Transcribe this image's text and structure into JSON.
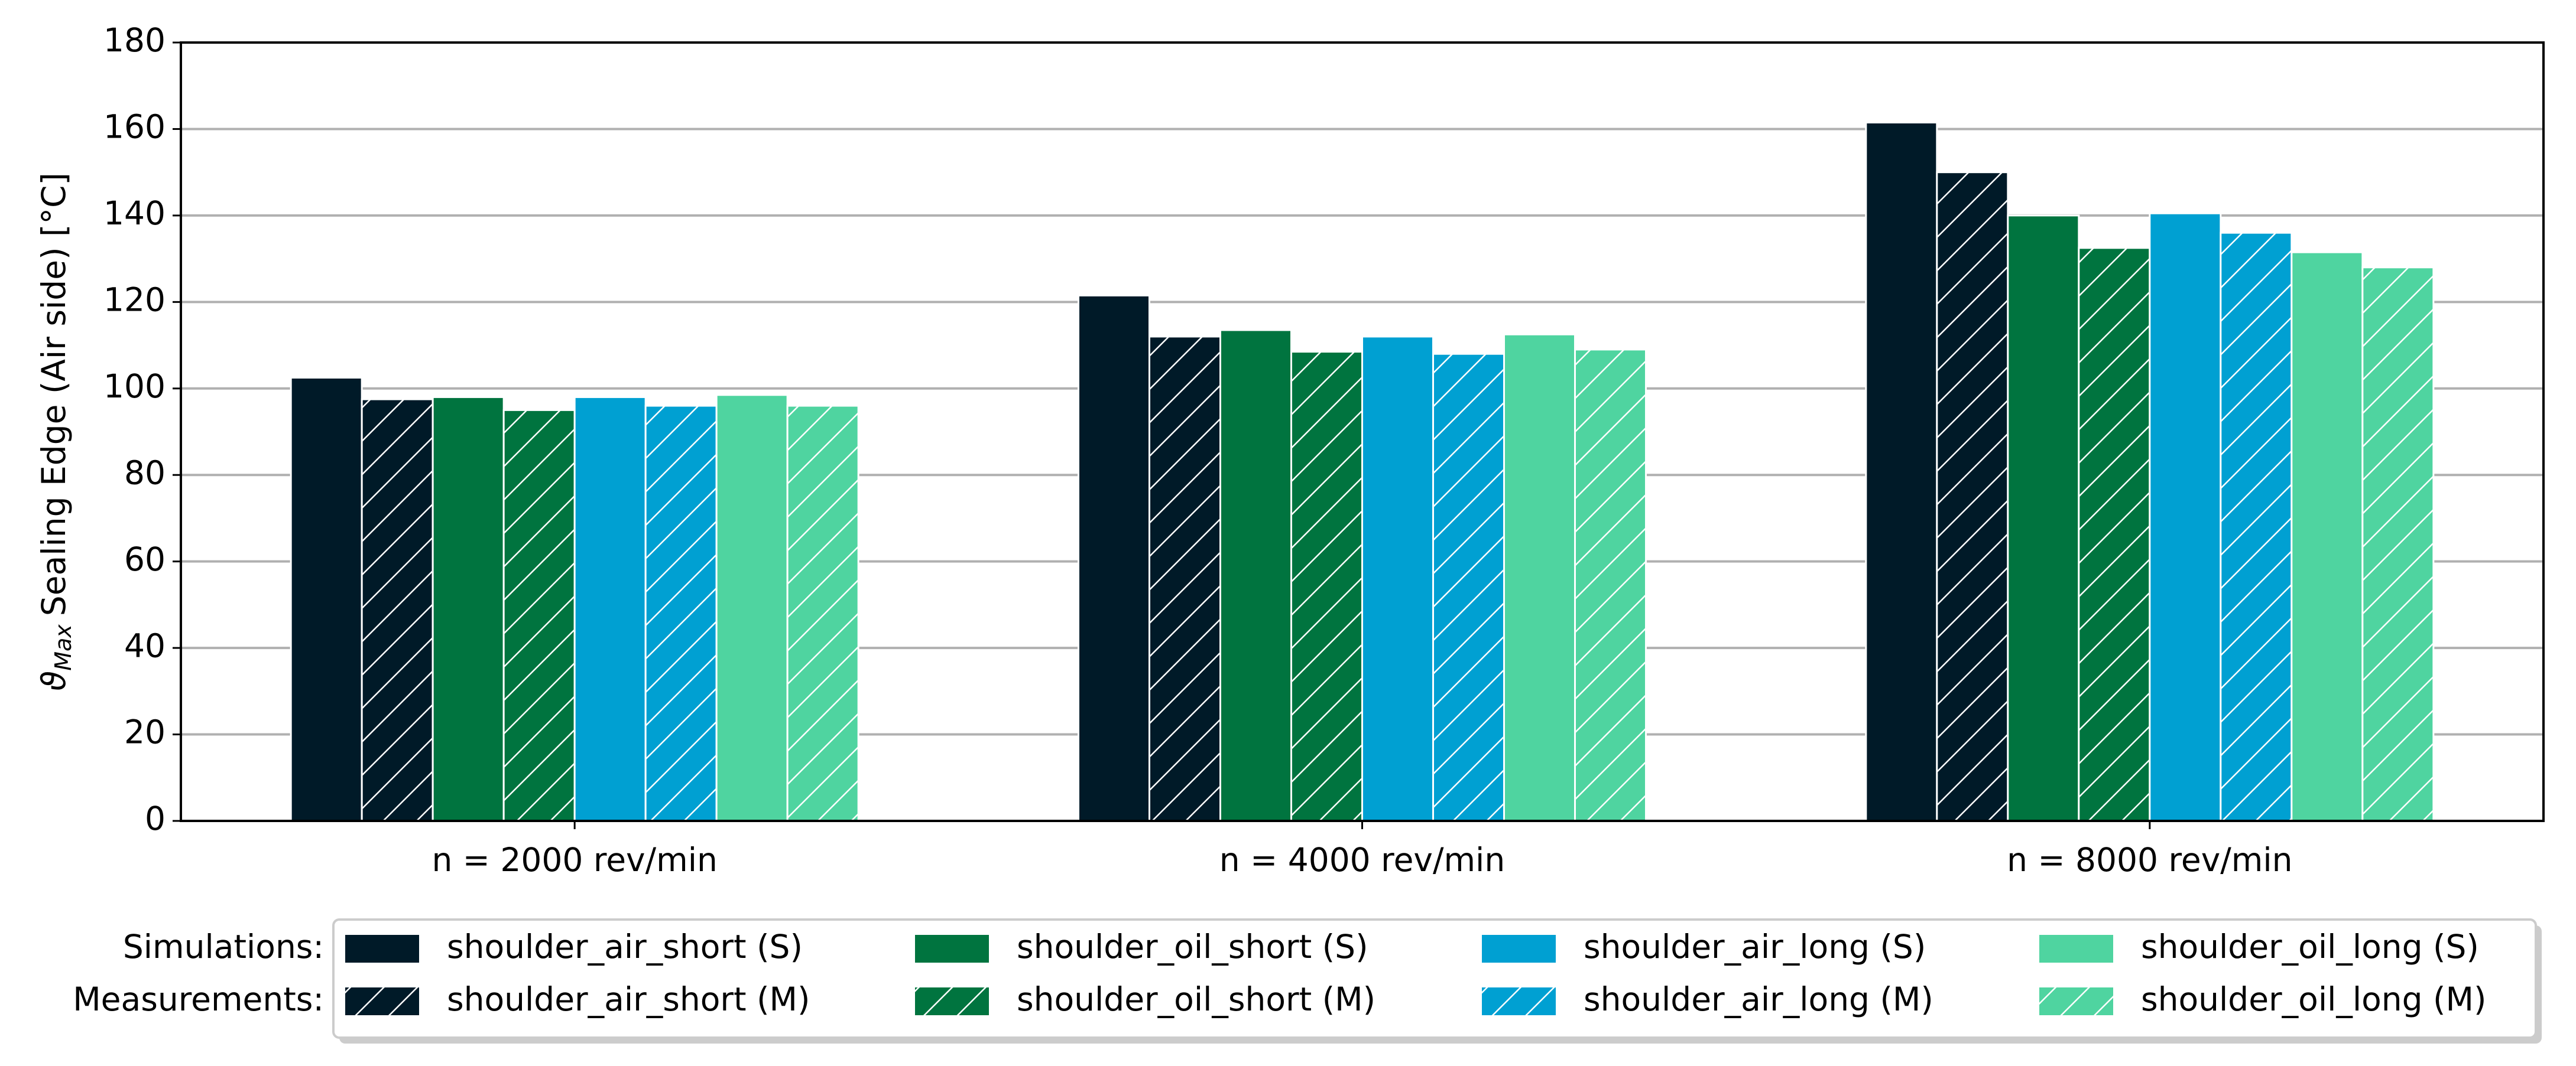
{
  "chart_data": {
    "type": "bar",
    "ylabel": {
      "symbol": "ϑ",
      "subscript": "Max",
      "text": "Sealing Edge (Air side)  [°C]"
    },
    "categories": [
      "n = 2000 rev/min",
      "n = 4000 rev/min",
      "n = 8000 rev/min"
    ],
    "series": [
      {
        "name": "shoulder_air_short (S)",
        "color": "#001a28",
        "hatch": false,
        "values": [
          102.5,
          121.5,
          161.5
        ]
      },
      {
        "name": "shoulder_air_short (M)",
        "color": "#001a28",
        "hatch": true,
        "values": [
          97.5,
          112,
          150
        ]
      },
      {
        "name": "shoulder_oil_short (S)",
        "color": "#00743f",
        "hatch": false,
        "values": [
          98,
          113.5,
          140
        ]
      },
      {
        "name": "shoulder_oil_short (M)",
        "color": "#00743f",
        "hatch": true,
        "values": [
          95,
          108.5,
          132.5
        ]
      },
      {
        "name": "shoulder_air_long (S)",
        "color": "#00a0d2",
        "hatch": false,
        "values": [
          98,
          112,
          140.5
        ]
      },
      {
        "name": "shoulder_air_long (M)",
        "color": "#00a0d2",
        "hatch": true,
        "values": [
          96,
          108,
          136
        ]
      },
      {
        "name": "shoulder_oil_long (S)",
        "color": "#4fd4a0",
        "hatch": false,
        "values": [
          98.5,
          112.5,
          131.5
        ]
      },
      {
        "name": "shoulder_oil_long (M)",
        "color": "#4fd4a0",
        "hatch": true,
        "values": [
          96,
          109,
          128
        ]
      }
    ],
    "legend_row_labels": [
      "Simulations:",
      "Measurements:"
    ],
    "ylim": [
      0,
      180
    ],
    "yticks": [
      0,
      20,
      40,
      60,
      80,
      100,
      120,
      140,
      160,
      180
    ],
    "grid": true
  }
}
